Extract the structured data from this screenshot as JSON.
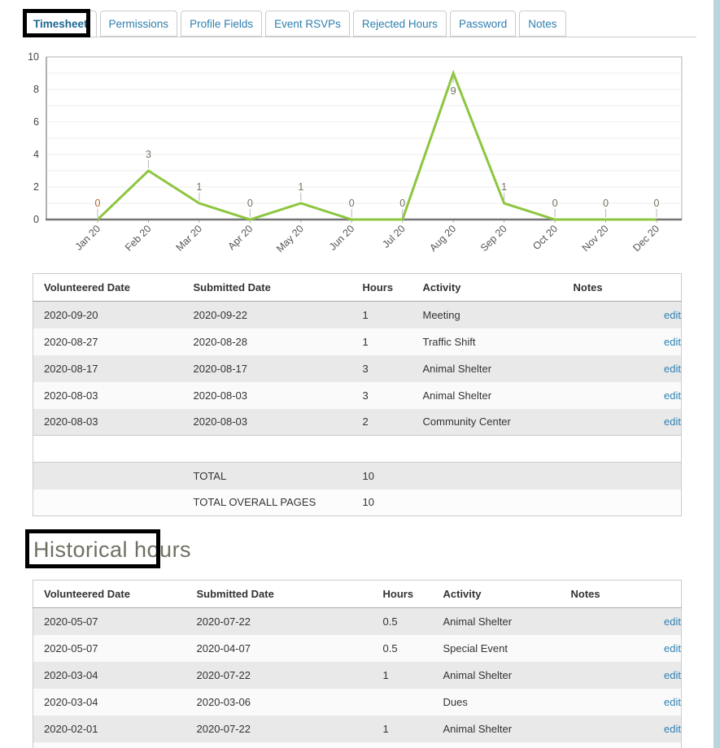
{
  "tabs": [
    {
      "label": "Timesheet",
      "active": true
    },
    {
      "label": "Permissions",
      "active": false
    },
    {
      "label": "Profile Fields",
      "active": false
    },
    {
      "label": "Event RSVPs",
      "active": false
    },
    {
      "label": "Rejected Hours",
      "active": false
    },
    {
      "label": "Password",
      "active": false
    },
    {
      "label": "Notes",
      "active": false
    }
  ],
  "chart_data": {
    "type": "line",
    "x": [
      "Jan 20",
      "Feb 20",
      "Mar 20",
      "Apr 20",
      "May 20",
      "Jun 20",
      "Jul 20",
      "Aug 20",
      "Sep 20",
      "Oct 20",
      "Nov 20",
      "Dec 20"
    ],
    "values": [
      0,
      3,
      1,
      0,
      1,
      0,
      0,
      9,
      1,
      0,
      0,
      0
    ],
    "title": "",
    "xlabel": "",
    "ylabel": "",
    "ylim": [
      0,
      10
    ],
    "yticks": [
      0,
      2,
      4,
      6,
      8,
      10
    ],
    "grid": true,
    "legend": null,
    "line_color": "#8dc63f",
    "point_label_color": "#727262",
    "first_point_label_color": "#b2622f"
  },
  "timesheet_table": {
    "headers": [
      "Volunteered Date",
      "Submitted Date",
      "Hours",
      "Activity",
      "Notes"
    ],
    "rows": [
      {
        "volunteered": "2020-09-20",
        "submitted": "2020-09-22",
        "hours": "1",
        "activity": "Meeting",
        "notes": ""
      },
      {
        "volunteered": "2020-08-27",
        "submitted": "2020-08-28",
        "hours": "1",
        "activity": "Traffic Shift",
        "notes": ""
      },
      {
        "volunteered": "2020-08-17",
        "submitted": "2020-08-17",
        "hours": "3",
        "activity": "Animal Shelter",
        "notes": ""
      },
      {
        "volunteered": "2020-08-03",
        "submitted": "2020-08-03",
        "hours": "3",
        "activity": "Animal Shelter",
        "notes": ""
      },
      {
        "volunteered": "2020-08-03",
        "submitted": "2020-08-03",
        "hours": "2",
        "activity": "Community Center",
        "notes": ""
      }
    ],
    "edit_label": "edit",
    "total_label": "TOTAL",
    "total_value": "10",
    "total_overall_label": "TOTAL OVERALL PAGES",
    "total_overall_value": "10"
  },
  "historical": {
    "heading": "Historical hours",
    "headers": [
      "Volunteered Date",
      "Submitted Date",
      "Hours",
      "Activity",
      "Notes"
    ],
    "rows": [
      {
        "volunteered": "2020-05-07",
        "submitted": "2020-07-22",
        "hours": "0.5",
        "activity": "Animal Shelter",
        "notes": ""
      },
      {
        "volunteered": "2020-05-07",
        "submitted": "2020-04-07",
        "hours": "0.5",
        "activity": "Special Event",
        "notes": ""
      },
      {
        "volunteered": "2020-03-04",
        "submitted": "2020-07-22",
        "hours": "1",
        "activity": "Animal Shelter",
        "notes": ""
      },
      {
        "volunteered": "2020-03-04",
        "submitted": "2020-03-06",
        "hours": "",
        "activity": "Dues",
        "notes": ""
      },
      {
        "volunteered": "2020-02-01",
        "submitted": "2020-07-22",
        "hours": "1",
        "activity": "Animal Shelter",
        "notes": ""
      }
    ],
    "edit_label": "edit"
  },
  "colors": {
    "tab_text": "#2f7fae",
    "active_tab_text": "#1b6893",
    "edit_link": "#2e81b4",
    "row_gray": "#e9e9e9",
    "row_light": "#fafafa",
    "chart_line": "#8dc63f",
    "annotation": "#000000",
    "scroll_strip": "#b9d6dc",
    "heading_text": "#6f6f63"
  }
}
